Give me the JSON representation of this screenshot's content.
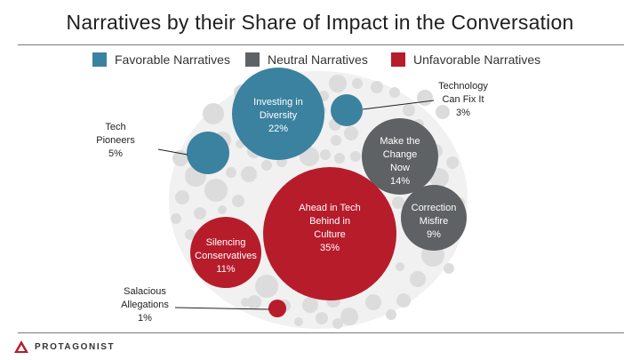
{
  "title": "Narratives by their Share of Impact in the Conversation",
  "colors": {
    "favorable": "#3b82a0",
    "neutral": "#5f6264",
    "unfavorable": "#b71c2b",
    "filler": "#dcdcdc"
  },
  "legend": [
    {
      "label": "Favorable Narratives",
      "color": "#3b82a0"
    },
    {
      "label": "Neutral Narratives",
      "color": "#5f6264"
    },
    {
      "label": "Unfavorable Narratives",
      "color": "#b71c2b"
    }
  ],
  "brand": {
    "name": "PROTAGONIST"
  },
  "chart_data": {
    "type": "bubble",
    "title": "Narratives by their Share of Impact in the Conversation",
    "unit": "%",
    "series": [
      {
        "name": "Favorable Narratives",
        "points": [
          {
            "label": "Investing in Diversity",
            "value": 22
          },
          {
            "label": "Tech Pioneers",
            "value": 5
          },
          {
            "label": "Technology Can Fix It",
            "value": 3
          }
        ]
      },
      {
        "name": "Neutral Narratives",
        "points": [
          {
            "label": "Make the Change Now",
            "value": 14
          },
          {
            "label": "Correction Misfire",
            "value": 9
          }
        ]
      },
      {
        "name": "Unfavorable Narratives",
        "points": [
          {
            "label": "Ahead in Tech Behind in Culture",
            "value": 35
          },
          {
            "label": "Silencing Conservatives",
            "value": 11
          },
          {
            "label": "Salacious Allegations",
            "value": 1
          }
        ]
      }
    ],
    "bubbles": [
      {
        "id": "investing-in-diversity",
        "lines": [
          "Investing in",
          "Diversity"
        ],
        "value_label": "22%",
        "category": "favorable",
        "label_inside": true
      },
      {
        "id": "tech-pioneers",
        "lines": [
          "Tech",
          "Pioneers"
        ],
        "value_label": "5%",
        "category": "favorable",
        "label_inside": false
      },
      {
        "id": "technology-can-fix-it",
        "lines": [
          "Technology",
          "Can Fix It"
        ],
        "value_label": "3%",
        "category": "favorable",
        "label_inside": false
      },
      {
        "id": "make-the-change-now",
        "lines": [
          "Make the",
          "Change",
          "Now"
        ],
        "value_label": "14%",
        "category": "neutral",
        "label_inside": true
      },
      {
        "id": "correction-misfire",
        "lines": [
          "Correction",
          "Misfire"
        ],
        "value_label": "9%",
        "category": "neutral",
        "label_inside": true
      },
      {
        "id": "ahead-in-tech-behind-in-culture",
        "lines": [
          "Ahead in Tech",
          "Behind in",
          "Culture"
        ],
        "value_label": "35%",
        "category": "unfavorable",
        "label_inside": true
      },
      {
        "id": "silencing-conservatives",
        "lines": [
          "Silencing",
          "Conservatives"
        ],
        "value_label": "11%",
        "category": "unfavorable",
        "label_inside": true
      },
      {
        "id": "salacious-allegations",
        "lines": [
          "Salacious",
          "Allegations"
        ],
        "value_label": "1%",
        "category": "unfavorable",
        "label_inside": false
      }
    ]
  }
}
